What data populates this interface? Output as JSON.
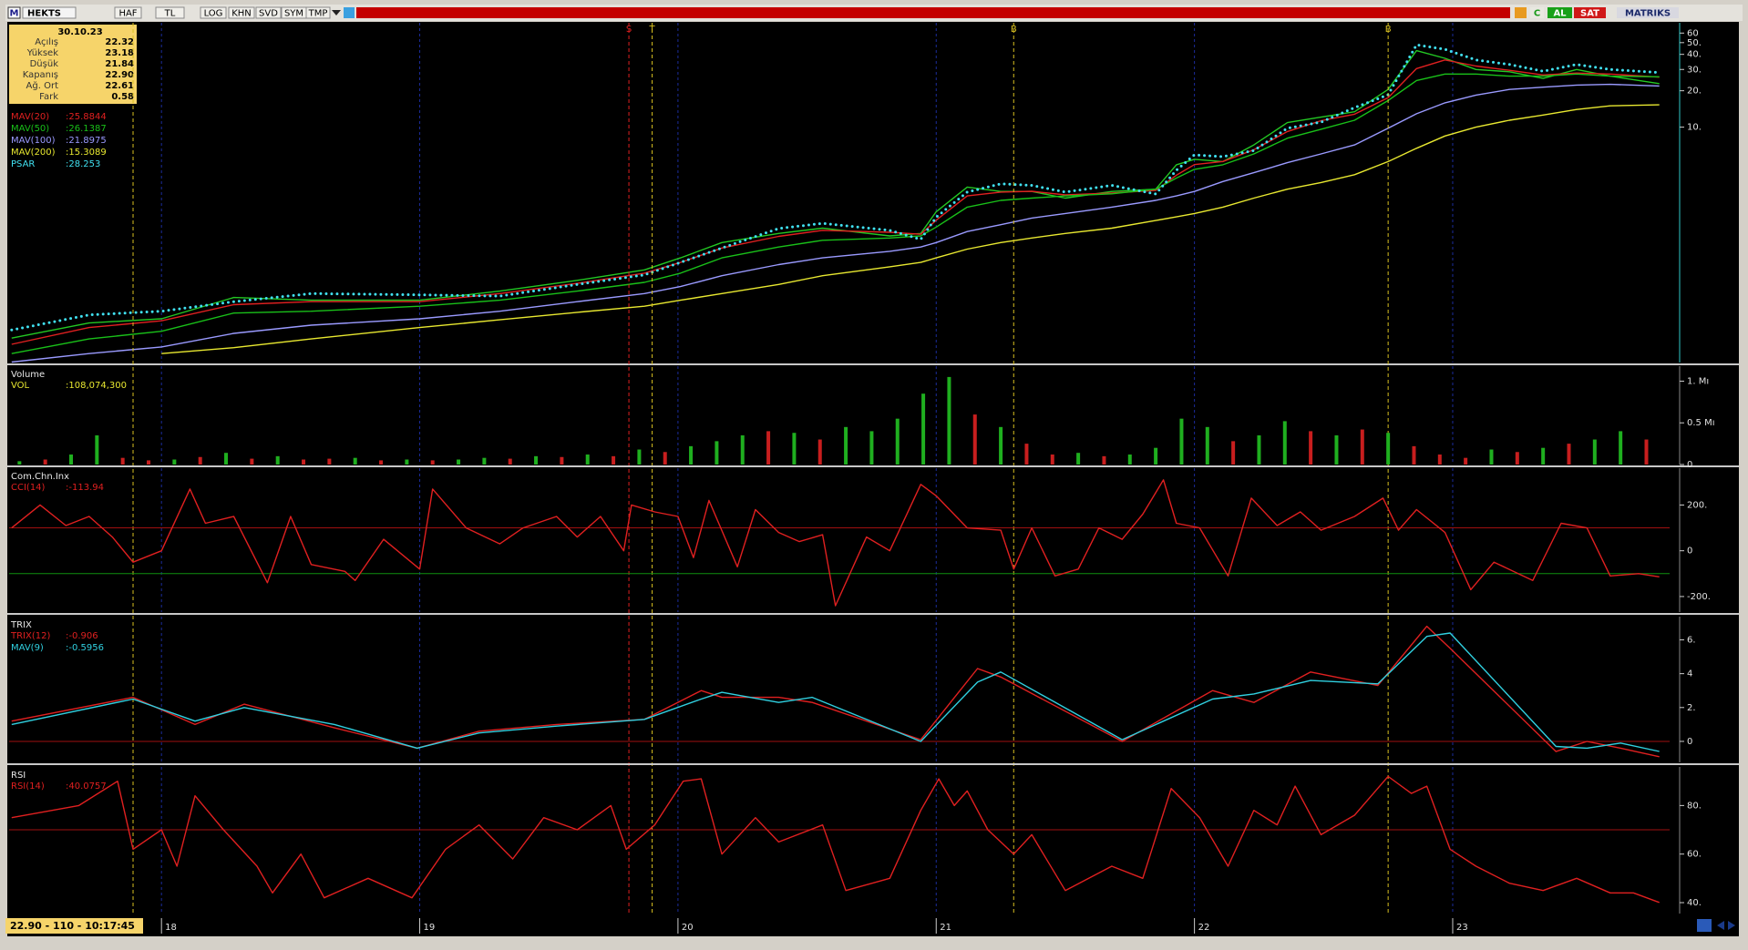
{
  "toolbar": {
    "logo": "M",
    "symbol": "HEKTS",
    "buttons": [
      "HAF",
      "TL",
      "LOG",
      "KHN",
      "SVD",
      "SYM",
      "TMP"
    ],
    "right_buttons": [
      "C",
      "AL",
      "SAT"
    ],
    "brand": "MATRIKS"
  },
  "info": {
    "date": "30.10.23",
    "rows": [
      [
        "Açılış",
        "22.32"
      ],
      [
        "Yüksek",
        "23.18"
      ],
      [
        "Düşük",
        "21.84"
      ],
      [
        "Kapanış",
        "22.90"
      ],
      [
        "Ağ. Ort",
        "22.61"
      ],
      [
        "Fark",
        "0.58"
      ]
    ]
  },
  "status": "22.90 - 110 - 10:17:45",
  "chart_data": [
    {
      "type": "line",
      "log_scale": true,
      "xlim": [
        17.41,
        23.84
      ],
      "xticks": [
        18,
        19,
        20,
        21,
        22,
        23
      ],
      "ylim": [
        0.113,
        73
      ],
      "yticks": [
        {
          "value": 10,
          "label": "10."
        },
        {
          "value": 20,
          "label": "20."
        },
        {
          "value": 30,
          "label": "30."
        },
        {
          "value": 40,
          "label": "40."
        },
        {
          "value": 50,
          "label": "50."
        },
        60
      ],
      "x": [
        17.42,
        17.72,
        18,
        18.28,
        18.58,
        19,
        19.31,
        19.61,
        19.87,
        20.01,
        20.17,
        20.39,
        20.56,
        20.82,
        20.94,
        21,
        21.12,
        21.25,
        21.37,
        21.5,
        21.68,
        21.85,
        21.93,
        22,
        22.11,
        22.23,
        22.36,
        22.49,
        22.62,
        22.75,
        22.86,
        22.97,
        23.09,
        23.22,
        23.35,
        23.48,
        23.61,
        23.8
      ],
      "series": [
        {
          "color": "#23c823",
          "values": [
            0.18,
            0.24,
            0.26,
            0.39,
            0.37,
            0.37,
            0.44,
            0.54,
            0.66,
            0.83,
            1.11,
            1.32,
            1.46,
            1.26,
            1.32,
            2,
            3.19,
            2.94,
            2.94,
            2.59,
            2.94,
            3.07,
            4.88,
            5.42,
            5.19,
            7.13,
            10.9,
            12.1,
            13.4,
            20.5,
            42.9,
            37.1,
            30,
            28.7,
            25.3,
            30,
            26.4,
            22.9
          ]
        },
        {
          "name": "MAV(20)",
          "readout": ":25.8844",
          "color": "#e02020",
          "values": [
            0.16,
            0.22,
            0.25,
            0.34,
            0.36,
            0.36,
            0.42,
            0.51,
            0.62,
            0.76,
            1,
            1.25,
            1.4,
            1.35,
            1.3,
            1.7,
            2.7,
            2.9,
            2.95,
            2.75,
            2.85,
            3,
            4,
            4.9,
            5.2,
            6.5,
            9.2,
            11.3,
            12.8,
            17.5,
            30.5,
            36,
            32,
            29.5,
            27,
            28,
            27.5,
            25.9
          ]
        },
        {
          "name": "MAV(50)",
          "readout": ":26.1387",
          "color": "#19c019",
          "values": [
            0.134,
            0.177,
            0.205,
            0.29,
            0.3,
            0.33,
            0.37,
            0.44,
            0.52,
            0.62,
            0.83,
            1.02,
            1.16,
            1.21,
            1.26,
            1.49,
            2.18,
            2.48,
            2.59,
            2.7,
            2.81,
            3.07,
            3.79,
            4.48,
            4.88,
            6,
            8.1,
            9.6,
            11.4,
            16.6,
            24.3,
            27.5,
            27.5,
            26.4,
            26.4,
            27.5,
            26.4,
            26.1
          ]
        },
        {
          "name": "MAV(100)",
          "readout": ":21.8975",
          "color": "#9a9aff",
          "values": [
            0.114,
            0.134,
            0.152,
            0.197,
            0.23,
            0.26,
            0.3,
            0.36,
            0.42,
            0.48,
            0.59,
            0.73,
            0.83,
            0.94,
            1.02,
            1.11,
            1.37,
            1.56,
            1.77,
            1.93,
            2.18,
            2.48,
            2.7,
            2.94,
            3.55,
            4.2,
            5.08,
            6,
            7.13,
            9.8,
            12.9,
            15.9,
            18.4,
            20.5,
            21.4,
            22.3,
            22.6,
            21.9
          ]
        },
        {
          "name": "MAV(200)",
          "readout": ":15.3089",
          "color": "#e8e830",
          "values": [
            null,
            null,
            0.134,
            0.15,
            0.177,
            0.22,
            0.255,
            0.294,
            0.33,
            0.37,
            0.42,
            0.5,
            0.59,
            0.7,
            0.76,
            0.83,
            0.98,
            1.11,
            1.21,
            1.32,
            1.46,
            1.69,
            1.81,
            1.93,
            2.18,
            2.59,
            3.07,
            3.48,
            4.04,
            5.19,
            6.69,
            8.45,
            10,
            11.4,
            12.6,
            14,
            15,
            15.3
          ]
        },
        {
          "name": "PSAR",
          "readout": ":28.253",
          "color": "#40e0f0",
          "style": "dotted",
          "values": [
            0.21,
            0.28,
            0.3,
            0.36,
            0.42,
            0.41,
            0.4,
            0.5,
            0.6,
            0.76,
            1,
            1.45,
            1.6,
            1.4,
            1.18,
            1.8,
            2.9,
            3.4,
            3.3,
            2.9,
            3.3,
            2.8,
            4.4,
            5.9,
            5.7,
            6.4,
            9.8,
            11,
            14.5,
            18.5,
            48,
            44,
            36,
            33,
            29,
            33,
            30,
            28.3
          ]
        }
      ],
      "signals": [
        {
          "x": 17.89,
          "color": "#d8c020"
        },
        {
          "x": 19.81,
          "label": "S",
          "color": "#e02020"
        },
        {
          "x": 19.9,
          "label": "T",
          "color": "#d8c020"
        },
        {
          "x": 21.3,
          "label": "B",
          "color": "#d8c020"
        },
        {
          "x": 22.75,
          "label": "B",
          "color": "#d8c020"
        }
      ]
    },
    {
      "type": "bar",
      "title": "Volume",
      "xlim": [
        17.41,
        23.84
      ],
      "xticks": [
        18,
        19,
        20,
        21,
        22,
        23
      ],
      "ylim": [
        0,
        1180000
      ],
      "yticks": [
        0,
        {
          "value": 500000,
          "label": "0.5 Mı"
        },
        {
          "value": 1000000,
          "label": "1. Mı"
        }
      ],
      "x": [
        17.45,
        17.55,
        17.65,
        17.75,
        17.85,
        17.95,
        18.05,
        18.15,
        18.25,
        18.35,
        18.45,
        18.55,
        18.65,
        18.75,
        18.85,
        18.95,
        19.05,
        19.15,
        19.25,
        19.35,
        19.45,
        19.55,
        19.65,
        19.75,
        19.85,
        19.95,
        20.05,
        20.15,
        20.25,
        20.35,
        20.45,
        20.55,
        20.65,
        20.75,
        20.85,
        20.95,
        21.05,
        21.15,
        21.25,
        21.35,
        21.45,
        21.55,
        21.65,
        21.75,
        21.85,
        21.95,
        22.05,
        22.15,
        22.25,
        22.35,
        22.45,
        22.55,
        22.65,
        22.75,
        22.85,
        22.95,
        23.05,
        23.15,
        23.25,
        23.35,
        23.45,
        23.55,
        23.65,
        23.75
      ],
      "series": [
        {
          "name": "VOL",
          "readout": ":108,074,300",
          "color": "#e8e830",
          "colors": [
            "#1faf1f",
            "#c81e1e",
            "#1faf1f",
            "#1faf1f",
            "#c81e1e",
            "#c81e1e",
            "#1faf1f",
            "#c81e1e",
            "#1faf1f",
            "#c81e1e",
            "#1faf1f",
            "#c81e1e",
            "#c81e1e",
            "#1faf1f",
            "#c81e1e",
            "#1faf1f",
            "#c81e1e",
            "#1faf1f",
            "#1faf1f",
            "#c81e1e",
            "#1faf1f",
            "#c81e1e",
            "#1faf1f",
            "#c81e1e",
            "#1faf1f",
            "#c81e1e",
            "#1faf1f",
            "#1faf1f",
            "#1faf1f",
            "#c81e1e",
            "#1faf1f",
            "#c81e1e",
            "#1faf1f",
            "#1faf1f",
            "#1faf1f",
            "#1faf1f",
            "#1faf1f",
            "#c81e1e",
            "#1faf1f",
            "#c81e1e",
            "#c81e1e",
            "#1faf1f",
            "#c81e1e",
            "#1faf1f",
            "#1faf1f",
            "#1faf1f",
            "#1faf1f",
            "#c81e1e",
            "#1faf1f",
            "#1faf1f",
            "#c81e1e",
            "#1faf1f",
            "#c81e1e",
            "#1faf1f",
            "#c81e1e",
            "#c81e1e",
            "#c81e1e",
            "#1faf1f",
            "#c81e1e",
            "#1faf1f",
            "#c81e1e",
            "#1faf1f",
            "#1faf1f",
            "#c81e1e"
          ],
          "values": [
            40000,
            60000,
            120000,
            350000,
            80000,
            50000,
            60000,
            90000,
            140000,
            70000,
            100000,
            60000,
            70000,
            80000,
            50000,
            60000,
            50000,
            60000,
            80000,
            70000,
            100000,
            90000,
            120000,
            100000,
            180000,
            150000,
            220000,
            280000,
            350000,
            400000,
            380000,
            300000,
            450000,
            400000,
            550000,
            850000,
            1050000,
            600000,
            450000,
            250000,
            120000,
            140000,
            100000,
            120000,
            200000,
            550000,
            450000,
            280000,
            350000,
            520000,
            400000,
            350000,
            420000,
            380000,
            220000,
            120000,
            80000,
            180000,
            150000,
            200000,
            250000,
            300000,
            400000,
            300000
          ]
        }
      ]
    },
    {
      "type": "line",
      "title": "Com.Chn.Inx",
      "xlim": [
        17.41,
        23.84
      ],
      "xticks": [
        18,
        19,
        20,
        21,
        22,
        23
      ],
      "ylim": [
        -268,
        361
      ],
      "yticks": [
        {
          "value": -200,
          "label": "-200."
        },
        0,
        {
          "value": 200,
          "label": "200."
        }
      ],
      "hlines": [
        {
          "value": 100,
          "color": "#a01010"
        },
        {
          "value": -100,
          "color": "#109010"
        }
      ],
      "x": [
        17.42,
        17.53,
        17.63,
        17.72,
        17.81,
        17.89,
        18,
        18.11,
        18.17,
        18.28,
        18.41,
        18.5,
        18.58,
        18.71,
        18.75,
        18.86,
        19,
        19.05,
        19.18,
        19.31,
        19.4,
        19.53,
        19.61,
        19.7,
        19.79,
        19.82,
        19.91,
        20,
        20.06,
        20.12,
        20.23,
        20.3,
        20.39,
        20.47,
        20.56,
        20.61,
        20.73,
        20.82,
        20.94,
        21,
        21.12,
        21.25,
        21.3,
        21.37,
        21.46,
        21.55,
        21.63,
        21.72,
        21.8,
        21.88,
        21.93,
        22.02,
        22.13,
        22.22,
        22.32,
        22.41,
        22.49,
        22.62,
        22.73,
        22.79,
        22.86,
        22.97,
        23.07,
        23.16,
        23.31,
        23.42,
        23.52,
        23.61,
        23.72,
        23.8
      ],
      "series": [
        {
          "name": "CCI(14)",
          "readout": ":-113.94",
          "color": "#e02020",
          "values": [
            100,
            200,
            110,
            150,
            60,
            -50,
            0,
            270,
            120,
            150,
            -140,
            150,
            -60,
            -90,
            -130,
            50,
            -80,
            270,
            100,
            30,
            100,
            150,
            60,
            150,
            0,
            200,
            170,
            150,
            -30,
            220,
            -70,
            180,
            80,
            40,
            70,
            -240,
            60,
            0,
            290,
            240,
            100,
            90,
            -80,
            100,
            -110,
            -80,
            100,
            50,
            160,
            310,
            120,
            100,
            -110,
            230,
            110,
            170,
            90,
            150,
            230,
            90,
            180,
            80,
            -170,
            -50,
            -130,
            120,
            100,
            -110,
            -100,
            -113.94
          ]
        }
      ]
    },
    {
      "type": "line",
      "title": "TRIX",
      "xlim": [
        17.41,
        23.84
      ],
      "xticks": [
        18,
        19,
        20,
        21,
        22,
        23
      ],
      "ylim": [
        -1.24,
        7.37
      ],
      "yticks": [
        0,
        {
          "value": 2,
          "label": "2."
        },
        4,
        {
          "value": 6,
          "label": "6."
        }
      ],
      "hlines": [
        {
          "value": 0,
          "color": "#a01010"
        }
      ],
      "x": [
        17.42,
        17.89,
        18.13,
        18.32,
        18.67,
        18.99,
        19.23,
        19.53,
        19.87,
        20.09,
        20.17,
        20.39,
        20.52,
        20.94,
        21.16,
        21.25,
        21.72,
        22.07,
        22.23,
        22.45,
        22.71,
        22.9,
        22.99,
        23.4,
        23.52,
        23.65,
        23.8
      ],
      "series": [
        {
          "name": "TRIX(12)",
          "readout": ":-0.906",
          "color": "#e02020",
          "values": [
            1.2,
            2.6,
            1,
            2.2,
            0.8,
            -0.4,
            0.6,
            1,
            1.3,
            3,
            2.6,
            2.6,
            2.3,
            0.1,
            4.3,
            3.8,
            0,
            3,
            2.3,
            4.1,
            3.3,
            6.8,
            5.5,
            -0.6,
            0,
            -0.4,
            -0.906
          ]
        },
        {
          "name": "MAV(9)",
          "readout": ":-0.5956",
          "color": "#30d0e0",
          "values": [
            1,
            2.5,
            1.2,
            2,
            1,
            -0.4,
            0.5,
            0.9,
            1.3,
            2.5,
            2.9,
            2.3,
            2.6,
            0,
            3.5,
            4.1,
            0.1,
            2.5,
            2.8,
            3.6,
            3.4,
            6.2,
            6.4,
            -0.3,
            -0.4,
            -0.1,
            -0.5956
          ]
        }
      ]
    },
    {
      "type": "line",
      "title": "RSI",
      "xlim": [
        17.41,
        23.84
      ],
      "xticks": [
        18,
        19,
        20,
        21,
        22,
        23
      ],
      "ylim": [
        35.5,
        95.9
      ],
      "yticks": [
        {
          "value": 40,
          "label": "40."
        },
        {
          "value": 60,
          "label": "60."
        },
        {
          "value": 80,
          "label": "80."
        }
      ],
      "hlines": [
        {
          "value": 70,
          "color": "#a01010"
        }
      ],
      "x": [
        17.42,
        17.68,
        17.83,
        17.89,
        18,
        18.06,
        18.13,
        18.24,
        18.37,
        18.43,
        18.54,
        18.63,
        18.8,
        18.97,
        19.1,
        19.23,
        19.36,
        19.48,
        19.61,
        19.74,
        19.8,
        19.91,
        20.02,
        20.09,
        20.17,
        20.3,
        20.39,
        20.56,
        20.65,
        20.82,
        20.94,
        21.01,
        21.07,
        21.12,
        21.2,
        21.3,
        21.37,
        21.5,
        21.68,
        21.8,
        21.91,
        22.02,
        22.13,
        22.23,
        22.32,
        22.39,
        22.49,
        22.62,
        22.75,
        22.84,
        22.9,
        22.99,
        23.09,
        23.22,
        23.35,
        23.48,
        23.61,
        23.7,
        23.8
      ],
      "series": [
        {
          "name": "RSI(14)",
          "readout": ":40.0757",
          "color": "#e02020",
          "values": [
            75,
            80,
            90,
            62,
            70,
            55,
            84,
            70,
            55,
            44,
            60,
            42,
            50,
            42,
            62,
            72,
            58,
            75,
            70,
            80,
            62,
            72,
            90,
            91,
            60,
            75,
            65,
            72,
            45,
            50,
            78,
            91,
            80,
            86,
            70,
            60,
            68,
            45,
            55,
            50,
            87,
            75,
            55,
            78,
            72,
            88,
            68,
            76,
            92,
            85,
            88,
            62,
            55,
            48,
            45,
            50,
            44,
            44,
            40.0757
          ]
        }
      ]
    }
  ]
}
